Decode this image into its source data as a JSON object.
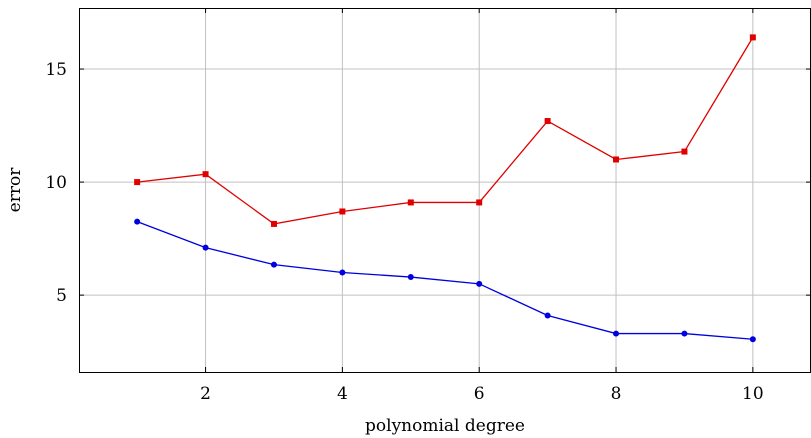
{
  "chart_data": {
    "type": "line",
    "xlabel": "polynomial degree",
    "ylabel": "error",
    "xlim": [
      0.15,
      10.85
    ],
    "ylim": [
      1.6,
      17.7
    ],
    "xticks": [
      2,
      4,
      6,
      8,
      10
    ],
    "yticks": [
      5,
      10,
      15
    ],
    "xtick_labels": [
      "2",
      "4",
      "6",
      "8",
      "10"
    ],
    "ytick_labels": [
      "5",
      "10",
      "15"
    ],
    "grid": true,
    "x": [
      1,
      2,
      3,
      4,
      5,
      6,
      7,
      8,
      9,
      10
    ],
    "series": [
      {
        "color": "#e00000",
        "marker": "square",
        "values": [
          10.0,
          10.35,
          8.15,
          8.7,
          9.1,
          9.1,
          12.7,
          11.0,
          11.35,
          16.4
        ]
      },
      {
        "color": "#0000e0",
        "marker": "circle",
        "values": [
          8.25,
          7.1,
          6.35,
          6.0,
          5.8,
          5.5,
          4.1,
          3.3,
          3.3,
          3.05
        ]
      }
    ]
  }
}
